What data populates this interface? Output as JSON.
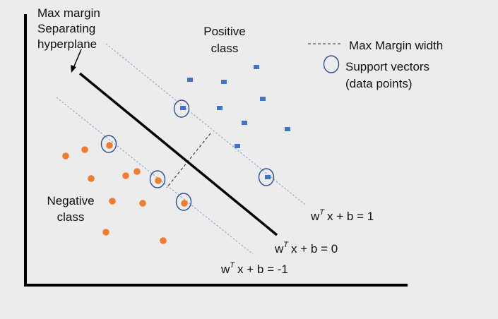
{
  "labels": {
    "hyperplane_line1": "Max margin",
    "hyperplane_line2": "Separating",
    "hyperplane_line3": "hyperplane",
    "positive_line1": "Positive",
    "positive_line2": "class",
    "negative_line1": "Negative",
    "negative_line2": "class"
  },
  "legend": {
    "margin_width": "Max Margin width",
    "support_vectors_line1": "Support vectors",
    "support_vectors_line2": "(data points)"
  },
  "equations": {
    "positive": {
      "base": "w",
      "sup": "T",
      "rest": "x + b = 1"
    },
    "decision": {
      "base": "w",
      "sup": "T",
      "rest": "x + b = 0"
    },
    "negative": {
      "base": "w",
      "sup": "T",
      "rest": "x + b = -1"
    }
  },
  "colors": {
    "background": "#ececec",
    "axis": "#000000",
    "hyperplane": "#000000",
    "margin_line": "#8ea6cf",
    "positive_point": "#4472c4",
    "negative_point": "#ed7d31",
    "support_ring": "#2f4f8f"
  }
}
